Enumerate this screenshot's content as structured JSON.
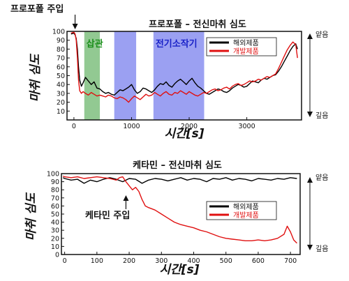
{
  "chart_data": [
    {
      "type": "line",
      "title": "프로포폴 – 전신마취 심도",
      "xlabel": "시간[s]",
      "ylabel": "마취 심도",
      "xlim": [
        -120,
        3950
      ],
      "ylim": [
        0,
        100
      ],
      "x_ticks": [
        0,
        1000,
        2000,
        3000
      ],
      "y_ticks": [
        10,
        20,
        30,
        40,
        50,
        60,
        70,
        80,
        90,
        100
      ],
      "grid": false,
      "legend_position": "top-right",
      "side_labels": {
        "top": "얕음",
        "bottom": "깊음"
      },
      "annotations": [
        {
          "text": "프로포폴 주입",
          "x": 20,
          "y": 100
        }
      ],
      "bands": [
        {
          "label": "삽관",
          "x0": 180,
          "x1": 450,
          "color": "#7fc07f",
          "label_color": "#1a8f1a"
        },
        {
          "label": "",
          "x0": 700,
          "x1": 1080,
          "color": "#8a8ff0",
          "label_color": ""
        },
        {
          "label": "전기소작기",
          "x0": 1380,
          "x1": 2260,
          "color": "#8a8ff0",
          "label_color": "#1a22c8"
        }
      ],
      "series": [
        {
          "name": "해외제품",
          "color": "#000000",
          "x": [
            -50,
            0,
            20,
            40,
            60,
            80,
            100,
            130,
            160,
            200,
            250,
            300,
            350,
            400,
            450,
            500,
            550,
            600,
            650,
            700,
            750,
            800,
            850,
            900,
            950,
            1000,
            1050,
            1100,
            1150,
            1200,
            1250,
            1300,
            1350,
            1400,
            1450,
            1500,
            1550,
            1600,
            1650,
            1700,
            1750,
            1800,
            1850,
            1900,
            1950,
            2000,
            2050,
            2100,
            2150,
            2200,
            2250,
            2300,
            2350,
            2400,
            2450,
            2500,
            2550,
            2600,
            2650,
            2700,
            2750,
            2800,
            2850,
            2900,
            2950,
            3000,
            3050,
            3100,
            3150,
            3200,
            3250,
            3300,
            3350,
            3400,
            3450,
            3500,
            3550,
            3600,
            3650,
            3700,
            3750,
            3800,
            3850,
            3880
          ],
          "values": [
            97,
            98,
            96,
            92,
            80,
            60,
            45,
            38,
            42,
            48,
            44,
            40,
            43,
            36,
            35,
            32,
            30,
            31,
            29,
            28,
            31,
            34,
            33,
            35,
            37,
            40,
            34,
            30,
            32,
            36,
            35,
            33,
            31,
            34,
            38,
            41,
            40,
            43,
            39,
            37,
            41,
            44,
            46,
            43,
            40,
            44,
            47,
            42,
            38,
            36,
            33,
            30,
            29,
            31,
            33,
            35,
            34,
            32,
            31,
            33,
            36,
            38,
            40,
            39,
            37,
            38,
            41,
            44,
            43,
            42,
            45,
            47,
            46,
            48,
            50,
            51,
            55,
            60,
            66,
            72,
            78,
            83,
            86,
            80
          ]
        },
        {
          "name": "개발제품",
          "color": "#e01010",
          "x": [
            -50,
            0,
            20,
            40,
            60,
            80,
            100,
            130,
            160,
            200,
            250,
            300,
            350,
            400,
            450,
            500,
            550,
            600,
            650,
            700,
            750,
            800,
            850,
            900,
            950,
            1000,
            1050,
            1100,
            1150,
            1200,
            1250,
            1300,
            1350,
            1400,
            1450,
            1500,
            1550,
            1600,
            1650,
            1700,
            1750,
            1800,
            1850,
            1900,
            1950,
            2000,
            2050,
            2100,
            2150,
            2200,
            2250,
            2300,
            2350,
            2400,
            2450,
            2500,
            2550,
            2600,
            2650,
            2700,
            2750,
            2800,
            2850,
            2900,
            2950,
            3000,
            3050,
            3100,
            3150,
            3200,
            3250,
            3300,
            3350,
            3400,
            3450,
            3500,
            3550,
            3600,
            3650,
            3700,
            3750,
            3800,
            3850,
            3880
          ],
          "values": [
            98,
            99,
            97,
            90,
            70,
            45,
            33,
            30,
            32,
            30,
            28,
            31,
            29,
            27,
            28,
            27,
            26,
            28,
            27,
            25,
            24,
            26,
            25,
            23,
            20,
            24,
            27,
            25,
            23,
            26,
            29,
            27,
            28,
            31,
            29,
            27,
            30,
            32,
            29,
            28,
            31,
            30,
            33,
            31,
            29,
            32,
            30,
            28,
            27,
            29,
            31,
            30,
            32,
            34,
            35,
            33,
            34,
            36,
            37,
            35,
            38,
            40,
            41,
            39,
            40,
            42,
            44,
            43,
            44,
            46,
            45,
            47,
            49,
            48,
            50,
            52,
            58,
            65,
            72,
            79,
            84,
            88,
            85,
            70
          ]
        }
      ]
    },
    {
      "type": "line",
      "title": "케타민 – 전신마취 심도",
      "xlabel": "시간[s]",
      "ylabel": "마취 심도",
      "xlim": [
        -10,
        730
      ],
      "ylim": [
        0,
        100
      ],
      "x_ticks": [
        0,
        100,
        200,
        300,
        400,
        500,
        600,
        700
      ],
      "y_ticks": [
        0,
        10,
        20,
        30,
        40,
        50,
        60,
        70,
        80,
        90,
        100
      ],
      "grid": false,
      "legend_position": "top-right",
      "side_labels": {
        "top": "얕음",
        "bottom": "깊음"
      },
      "annotations": [
        {
          "text": "케타민 주입",
          "x": 190,
          "y": 70
        }
      ],
      "bands": [],
      "series": [
        {
          "name": "해외제품",
          "color": "#000000",
          "x": [
            -5,
            0,
            20,
            40,
            60,
            80,
            100,
            120,
            140,
            160,
            180,
            200,
            220,
            240,
            260,
            280,
            300,
            320,
            340,
            360,
            380,
            400,
            420,
            440,
            460,
            480,
            500,
            520,
            540,
            560,
            580,
            600,
            620,
            640,
            660,
            680,
            700,
            720
          ],
          "values": [
            95,
            94,
            92,
            93,
            88,
            92,
            90,
            93,
            95,
            93,
            90,
            94,
            93,
            88,
            92,
            94,
            93,
            91,
            93,
            95,
            92,
            94,
            93,
            90,
            94,
            93,
            95,
            92,
            94,
            93,
            91,
            94,
            93,
            92,
            94,
            93,
            95,
            94
          ]
        },
        {
          "name": "개발제품",
          "color": "#e01010",
          "x": [
            -5,
            0,
            20,
            40,
            60,
            80,
            100,
            120,
            140,
            160,
            170,
            180,
            190,
            200,
            210,
            220,
            230,
            240,
            250,
            260,
            280,
            300,
            320,
            340,
            360,
            380,
            400,
            420,
            440,
            460,
            480,
            500,
            520,
            540,
            560,
            580,
            600,
            620,
            640,
            660,
            680,
            690,
            700,
            710,
            720
          ],
          "values": [
            97,
            96,
            95,
            96,
            94,
            95,
            96,
            95,
            94,
            92,
            95,
            96,
            90,
            85,
            80,
            83,
            78,
            68,
            60,
            58,
            55,
            50,
            45,
            40,
            37,
            35,
            33,
            30,
            28,
            25,
            22,
            20,
            19,
            18,
            17,
            17,
            18,
            17,
            18,
            20,
            25,
            35,
            28,
            18,
            14
          ]
        }
      ]
    }
  ]
}
